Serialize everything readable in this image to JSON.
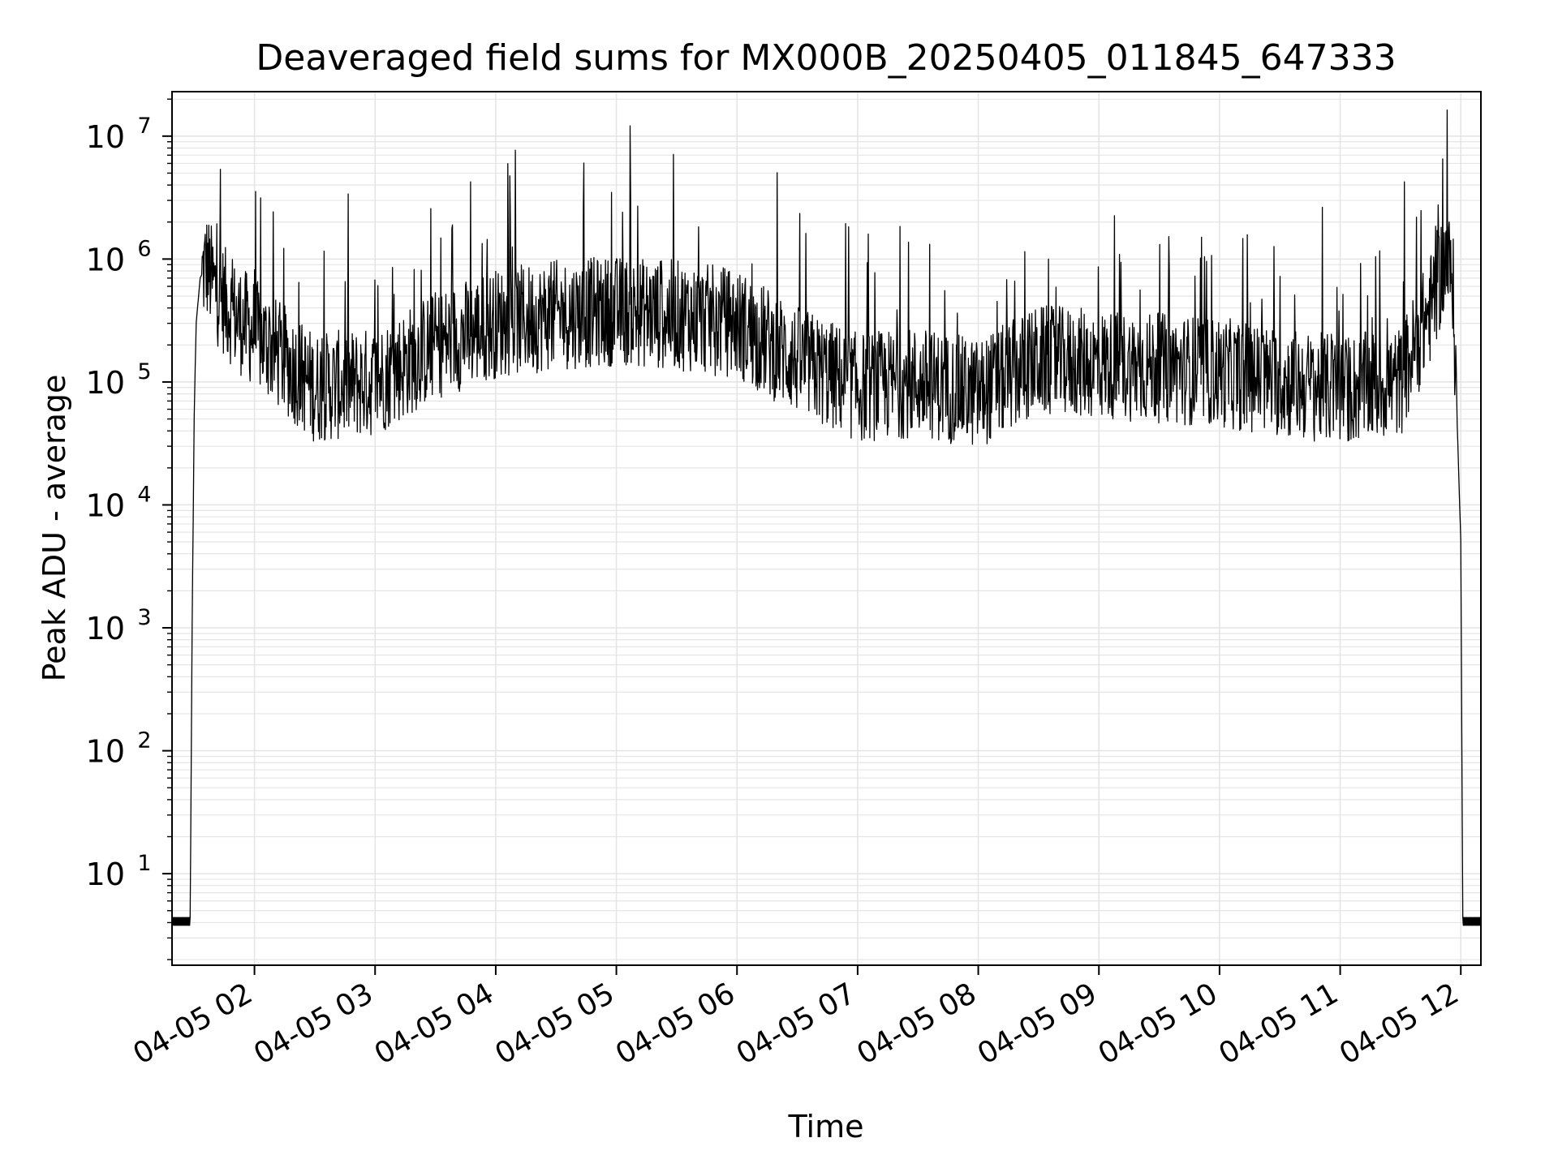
{
  "chart_data": {
    "type": "line",
    "title": "Deaveraged field sums for MX000B_20250405_011845_647333",
    "xlabel": "Time",
    "ylabel": "Peak ADU - average",
    "yscale": "log",
    "ylim": [
      1.8,
      23000000
    ],
    "xlim": [
      "2025-04-05 01:19",
      "2025-04-05 12:10"
    ],
    "grid": true,
    "x_ticks": [
      {
        "label": "04-05 02",
        "time": "2025-04-05 02:00"
      },
      {
        "label": "04-05 03",
        "time": "2025-04-05 03:00"
      },
      {
        "label": "04-05 04",
        "time": "2025-04-05 04:00"
      },
      {
        "label": "04-05 05",
        "time": "2025-04-05 05:00"
      },
      {
        "label": "04-05 06",
        "time": "2025-04-05 06:00"
      },
      {
        "label": "04-05 07",
        "time": "2025-04-05 07:00"
      },
      {
        "label": "04-05 08",
        "time": "2025-04-05 08:00"
      },
      {
        "label": "04-05 09",
        "time": "2025-04-05 09:00"
      },
      {
        "label": "04-05 10",
        "time": "2025-04-05 10:00"
      },
      {
        "label": "04-05 11",
        "time": "2025-04-05 11:00"
      },
      {
        "label": "04-05 12",
        "time": "2025-04-05 12:00"
      }
    ],
    "y_ticks": [
      {
        "base": "10",
        "exp": "1",
        "value": 10
      },
      {
        "base": "10",
        "exp": "2",
        "value": 100
      },
      {
        "base": "10",
        "exp": "3",
        "value": 1000
      },
      {
        "base": "10",
        "exp": "4",
        "value": 10000
      },
      {
        "base": "10",
        "exp": "5",
        "value": 100000
      },
      {
        "base": "10",
        "exp": "6",
        "value": 1000000
      },
      {
        "base": "10",
        "exp": "7",
        "value": 10000000
      }
    ],
    "series": [
      {
        "color": "#000000",
        "points": [
          [
            "2025-04-05 01:19",
            4
          ],
          [
            "2025-04-05 01:28",
            4
          ],
          [
            "2025-04-05 01:29",
            1000
          ],
          [
            "2025-04-05 01:30",
            50000
          ],
          [
            "2025-04-05 01:31",
            300000
          ],
          [
            "2025-04-05 01:33",
            700000
          ],
          [
            "2025-04-05 01:36",
            900000
          ],
          [
            "2025-04-05 01:40",
            600000
          ],
          [
            "2025-04-05 01:50",
            350000
          ],
          [
            "2025-04-05 02:00",
            250000
          ],
          [
            "2025-04-05 02:15",
            150000
          ],
          [
            "2025-04-05 02:30",
            90000
          ],
          [
            "2025-04-05 03:00",
            100000
          ],
          [
            "2025-04-05 03:30",
            200000
          ],
          [
            "2025-04-05 04:00",
            300000
          ],
          [
            "2025-04-05 04:30",
            350000
          ],
          [
            "2025-04-05 05:00",
            380000
          ],
          [
            "2025-04-05 05:30",
            350000
          ],
          [
            "2025-04-05 06:00",
            300000
          ],
          [
            "2025-04-05 06:30",
            150000
          ],
          [
            "2025-04-05 07:00",
            90000
          ],
          [
            "2025-04-05 07:30",
            100000
          ],
          [
            "2025-04-05 08:00",
            80000
          ],
          [
            "2025-04-05 08:30",
            150000
          ],
          [
            "2025-04-05 09:00",
            140000
          ],
          [
            "2025-04-05 09:30",
            130000
          ],
          [
            "2025-04-05 10:00",
            120000
          ],
          [
            "2025-04-05 10:30",
            100000
          ],
          [
            "2025-04-05 11:00",
            85000
          ],
          [
            "2025-04-05 11:30",
            100000
          ],
          [
            "2025-04-05 11:45",
            400000
          ],
          [
            "2025-04-05 11:52",
            1000000
          ],
          [
            "2025-04-05 11:56",
            700000
          ],
          [
            "2025-04-05 12:00",
            5000
          ],
          [
            "2025-04-05 12:01",
            4
          ],
          [
            "2025-04-05 12:10",
            4
          ]
        ]
      }
    ]
  }
}
